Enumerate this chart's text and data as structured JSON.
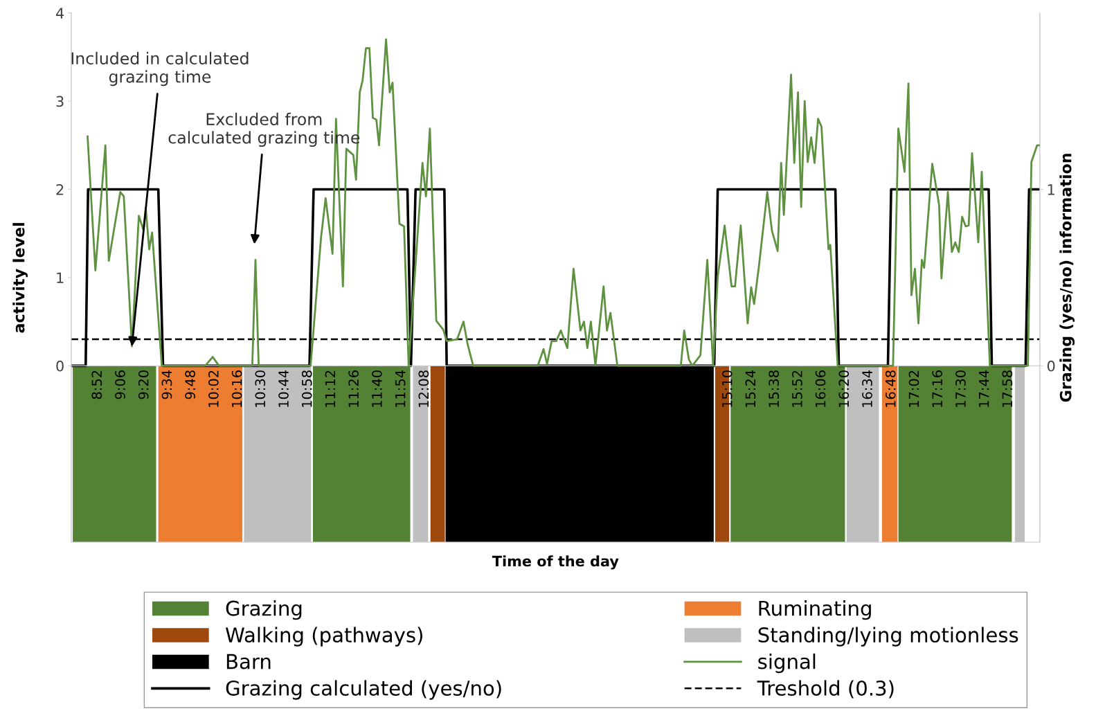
{
  "chart_data": {
    "type": "line",
    "xlabel": "Time of the day",
    "ylabel": "activity level",
    "y2label": "Grazing (yes/no) information",
    "xlim": [
      8.6,
      18.28
    ],
    "xticks": [
      {
        "value": 8.8667,
        "label": "8:52"
      },
      {
        "value": 9.1,
        "label": "9:06"
      },
      {
        "value": 9.3333,
        "label": "9:20"
      },
      {
        "value": 9.5667,
        "label": "9:34"
      },
      {
        "value": 9.8,
        "label": "9:48"
      },
      {
        "value": 10.0333,
        "label": "10:02"
      },
      {
        "value": 10.2667,
        "label": "10:16"
      },
      {
        "value": 10.5,
        "label": "10:30"
      },
      {
        "value": 10.7333,
        "label": "10:44"
      },
      {
        "value": 10.9667,
        "label": "10:58"
      },
      {
        "value": 11.2,
        "label": "11:12"
      },
      {
        "value": 11.4333,
        "label": "11:26"
      },
      {
        "value": 11.6667,
        "label": "11:40"
      },
      {
        "value": 11.9,
        "label": "11:54"
      },
      {
        "value": 12.1333,
        "label": "12:08"
      },
      {
        "value": 15.1667,
        "label": "15:10"
      },
      {
        "value": 15.4,
        "label": "15:24"
      },
      {
        "value": 15.6333,
        "label": "15:38"
      },
      {
        "value": 15.8667,
        "label": "15:52"
      },
      {
        "value": 16.1,
        "label": "16:06"
      },
      {
        "value": 16.3333,
        "label": "16:20"
      },
      {
        "value": 16.5667,
        "label": "16:34"
      },
      {
        "value": 16.8,
        "label": "16:48"
      },
      {
        "value": 17.0333,
        "label": "17:02"
      },
      {
        "value": 17.2667,
        "label": "17:16"
      },
      {
        "value": 17.5,
        "label": "17:30"
      },
      {
        "value": 17.7333,
        "label": "17:44"
      },
      {
        "value": 17.9667,
        "label": "17:58"
      }
    ],
    "ylim": [
      -2,
      4
    ],
    "yticks": [
      0,
      1,
      2,
      3,
      4
    ],
    "y2lim": [
      -1,
      2
    ],
    "y2ticks": [
      0,
      1
    ],
    "grid": false,
    "legend": "bottom",
    "series": [
      {
        "name": "Grazing",
        "type": "area",
        "axis": "y2",
        "color": "#548235",
        "x": [
          8.615,
          9.448
        ],
        "values": [
          -1,
          -1
        ]
      },
      {
        "type": "area",
        "axis": "y2",
        "color": "#548235",
        "x": [
          11.015,
          11.988
        ],
        "values": [
          -1,
          -1
        ]
      },
      {
        "type": "area",
        "axis": "y2",
        "color": "#548235",
        "x": [
          15.19,
          16.333
        ],
        "values": [
          -1,
          -1
        ]
      },
      {
        "type": "area",
        "axis": "y2",
        "color": "#548235",
        "x": [
          16.867,
          18.0
        ],
        "values": [
          -1,
          -1
        ]
      },
      {
        "name": "Ruminating",
        "type": "area",
        "axis": "y2",
        "color": "#ed7d31",
        "x": [
          9.47,
          10.31
        ],
        "values": [
          -1,
          -1
        ]
      },
      {
        "type": "area",
        "axis": "y2",
        "color": "#ed7d31",
        "x": [
          16.703,
          16.858
        ],
        "values": [
          -1,
          -1
        ]
      },
      {
        "name": "Walking (pathways)",
        "type": "area",
        "axis": "y2",
        "color": "#9e480e",
        "x": [
          12.19,
          12.334
        ],
        "values": [
          -1,
          -1
        ]
      },
      {
        "type": "area",
        "axis": "y2",
        "color": "#9e480e",
        "x": [
          15.035,
          15.175
        ],
        "values": [
          -1,
          -1
        ]
      },
      {
        "name": "Standing/lying motionless",
        "type": "area",
        "axis": "y2",
        "color": "#bfbfbf",
        "x": [
          10.326,
          10.997
        ],
        "values": [
          -1,
          -1
        ]
      },
      {
        "type": "area",
        "axis": "y2",
        "color": "#bfbfbf",
        "x": [
          12.015,
          12.167
        ],
        "values": [
          -1,
          -1
        ]
      },
      {
        "type": "area",
        "axis": "y2",
        "color": "#bfbfbf",
        "x": [
          16.349,
          16.672
        ],
        "values": [
          -1,
          -1
        ]
      },
      {
        "type": "area",
        "axis": "y2",
        "color": "#bfbfbf",
        "x": [
          18.031,
          18.129
        ],
        "values": [
          -1,
          -1
        ]
      },
      {
        "name": "Barn",
        "type": "area",
        "axis": "y2",
        "color": "#000000",
        "x": [
          12.341,
          15.021
        ],
        "values": [
          -1,
          -1
        ]
      },
      {
        "name": "signal",
        "color": "#5e9140",
        "x": [
          8.763,
          8.841,
          8.941,
          8.975,
          9.09,
          9.125,
          9.206,
          9.275,
          9.321,
          9.344,
          9.379,
          9.408,
          9.505,
          9.939,
          10.013,
          10.077,
          10.409,
          10.441,
          10.473,
          10.992,
          11.096,
          11.142,
          11.211,
          11.246,
          11.315,
          11.349,
          11.419,
          11.446,
          11.483,
          11.511,
          11.545,
          11.58,
          11.614,
          11.649,
          11.676,
          11.746,
          11.783,
          11.811,
          11.88,
          11.926,
          11.972,
          12.11,
          12.145,
          12.184,
          12.248,
          12.318,
          12.352,
          12.456,
          12.52,
          12.56,
          12.617,
          13.263,
          13.32,
          13.355,
          13.401,
          13.447,
          13.493,
          13.558,
          13.62,
          13.689,
          13.724,
          13.758,
          13.793,
          13.839,
          13.92,
          13.954,
          13.989,
          14.058,
          14.692,
          14.726,
          14.773,
          14.807,
          14.888,
          14.957,
          15.015,
          15.061,
          15.13,
          15.199,
          15.234,
          15.291,
          15.36,
          15.395,
          15.425,
          15.476,
          15.556,
          15.603,
          15.66,
          15.695,
          15.722,
          15.794,
          15.826,
          15.863,
          15.895,
          15.93,
          15.96,
          15.995,
          16.029,
          16.064,
          16.098,
          16.168,
          16.186,
          16.26,
          16.813,
          16.866,
          16.928,
          16.967,
          16.997,
          17.032,
          17.067,
          17.101,
          17.124,
          17.205,
          17.274,
          17.297,
          17.361,
          17.401,
          17.435,
          17.47,
          17.504,
          17.539,
          17.569,
          17.603,
          17.665,
          17.7,
          17.781,
          18.161,
          18.196,
          18.253,
          18.277
        ],
        "values": [
          2.6,
          1.08,
          2.5,
          1.19,
          1.97,
          1.92,
          0.22,
          1.7,
          1.54,
          1.79,
          1.32,
          1.51,
          0,
          0,
          0.1,
          0,
          0,
          1.2,
          0,
          0,
          1.45,
          1.9,
          1.27,
          2.8,
          0.9,
          2.46,
          2.39,
          2.11,
          3.1,
          3.23,
          3.6,
          3.6,
          2.81,
          2.79,
          2.5,
          3.7,
          3.1,
          3.21,
          1.61,
          1.58,
          0,
          2.3,
          1.92,
          2.69,
          0.51,
          0.41,
          0.28,
          0.3,
          0.5,
          0.25,
          0,
          0,
          0.19,
          0.02,
          0.28,
          0.28,
          0.4,
          0.2,
          1.1,
          0.4,
          0.5,
          0.2,
          0.5,
          0,
          0.9,
          0.4,
          0.6,
          0,
          0,
          0.4,
          0.07,
          0,
          0.12,
          1.2,
          0,
          1.01,
          1.59,
          0.9,
          0.9,
          1.59,
          0.48,
          0.89,
          0.7,
          1.16,
          1.97,
          1.53,
          1.3,
          2.3,
          1.71,
          3.3,
          2.3,
          3.1,
          1.8,
          3.0,
          2.31,
          2.59,
          2.3,
          2.8,
          2.71,
          1.32,
          1.37,
          0,
          0,
          2.69,
          2.2,
          3.2,
          0.8,
          1.1,
          0.48,
          1.2,
          1.11,
          2.29,
          1.82,
          0.99,
          1.97,
          1.29,
          1.4,
          1.29,
          1.69,
          1.58,
          1.59,
          2.41,
          1.4,
          2.2,
          0,
          0,
          2.31,
          2.5,
          2.5
        ]
      },
      {
        "name": "Grazing calculated (yes/no)",
        "axis": "y2",
        "color": "#000000",
        "x": [
          8.604,
          8.744,
          8.768,
          9.47,
          9.517,
          10.981,
          11.022,
          11.96,
          11.995,
          12.041,
          12.329,
          12.352,
          15.026,
          15.061,
          16.237,
          16.271,
          16.762,
          16.794,
          17.769,
          17.8,
          18.138,
          18.173,
          18.277
        ],
        "values": [
          0,
          0,
          1,
          1,
          0,
          0,
          1,
          1,
          0,
          1,
          1,
          0,
          0,
          1,
          1,
          0,
          0,
          1,
          1,
          0,
          0,
          1,
          1
        ]
      }
    ],
    "ref_lines": [
      {
        "axis": "y",
        "value": 0.3,
        "label": "Treshold (0.3)",
        "color": "#000000",
        "line_style": "dashed"
      }
    ],
    "annotations": [
      {
        "text": "Included in calculated\ngrazing time",
        "x": 9.206,
        "y": 0.22
      },
      "Excluded from\ncalculated grazing time"
    ]
  }
}
